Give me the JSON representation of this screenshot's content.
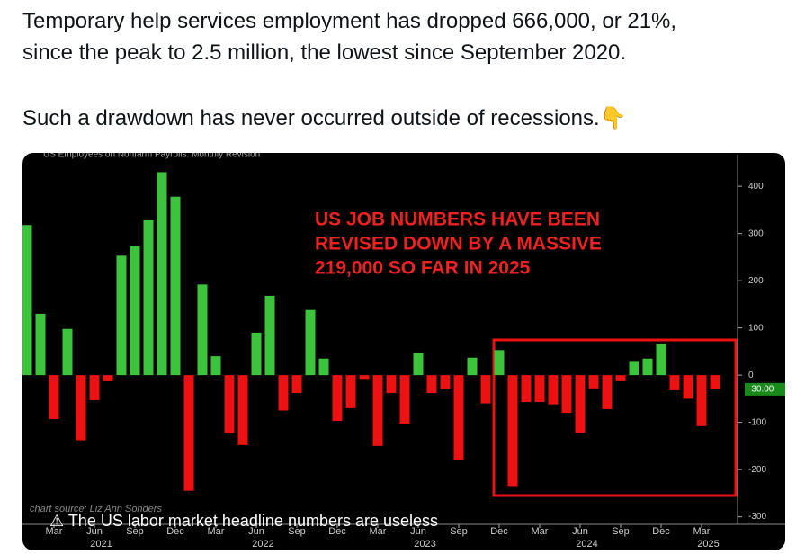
{
  "post": {
    "text": [
      "Temporary help services employment has dropped 666,000, or 21%,",
      "since the peak to 2.5 million, the lowest since September 2020.",
      "Such a drawdown has never occurred outside of recessions.👇"
    ]
  },
  "chart_data": {
    "type": "bar",
    "title": "US Employees on Nonfarm Payrolls: Monthly Revision",
    "annotation": [
      "US JOB NUMBERS HAVE BEEN",
      "REVISED DOWN BY A MASSIVE",
      "219,000 SO FAR IN 2025"
    ],
    "source": "chart source: Liz Ann Sonders",
    "caption": "⚠ The US labor market headline numbers are useless",
    "categories": [
      null,
      null,
      "Mar",
      null,
      null,
      "Jun",
      null,
      null,
      "Sep",
      null,
      null,
      "Dec",
      null,
      null,
      "Mar",
      null,
      null,
      "Jun",
      null,
      null,
      "Sep",
      null,
      null,
      "Dec",
      null,
      null,
      "Mar",
      null,
      null,
      "Jun",
      null,
      null,
      "Sep",
      null,
      null,
      "Dec",
      null,
      null,
      "Mar",
      null,
      null,
      "Jun",
      null,
      null,
      "Sep",
      null,
      null,
      "Dec",
      null,
      null,
      "Mar",
      null
    ],
    "years": [
      "2021",
      "2022",
      "2023",
      "2024",
      "2025"
    ],
    "values": [
      318,
      130,
      -93,
      98,
      -138,
      -53,
      -13,
      253,
      273,
      328,
      430,
      378,
      -245,
      192,
      40,
      -123,
      -148,
      90,
      168,
      -75,
      -38,
      138,
      35,
      -97,
      -70,
      -8,
      -150,
      -38,
      -103,
      48,
      -38,
      -30,
      -180,
      37,
      -60,
      53,
      -235,
      -57,
      -57,
      -62,
      -80,
      -122,
      -28,
      -72,
      -13,
      30,
      35,
      67,
      -32,
      -50,
      -108,
      -30
    ],
    "last_value_label": "-30.00",
    "positive_color": "#3cc43c",
    "negative_color": "#ee1111",
    "ylim": [
      -316,
      467
    ],
    "yticks": [
      -300,
      -200,
      -100,
      0,
      100,
      200,
      300,
      400
    ],
    "grid": false
  }
}
